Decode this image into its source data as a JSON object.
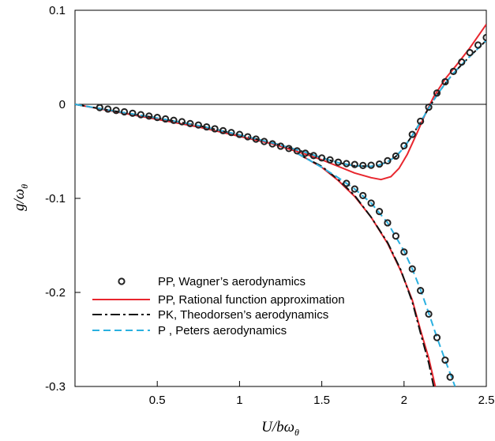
{
  "chart_data": {
    "type": "line",
    "xlabel": {
      "main": "U/bω",
      "sub": "θ"
    },
    "ylabel": {
      "main": "g/ω",
      "sub": "θ"
    },
    "xlim": [
      0,
      2.5
    ],
    "ylim": [
      -0.3,
      0.1
    ],
    "xticks": [
      0.5,
      1,
      1.5,
      2,
      2.5
    ],
    "xtick_labels": [
      "0.5",
      "1",
      "1.5",
      "2",
      "2.5"
    ],
    "yticks": [
      0.1,
      0,
      -0.1,
      -0.2,
      -0.3
    ],
    "ytick_labels": [
      "0.1",
      "0",
      "-0.1",
      "-0.2",
      "-0.3"
    ],
    "zero_line": true,
    "grid": false,
    "legend_position": "bottom-left",
    "series": [
      {
        "name": "PP,  Wagner’s aerodynamics",
        "style": "markers",
        "color": "#222222",
        "branches": [
          [
            [
              0.15,
              -0.0035
            ],
            [
              0.2,
              -0.005
            ],
            [
              0.25,
              -0.0065
            ],
            [
              0.3,
              -0.008
            ],
            [
              0.35,
              -0.0095
            ],
            [
              0.4,
              -0.011
            ],
            [
              0.45,
              -0.0125
            ],
            [
              0.5,
              -0.014
            ],
            [
              0.55,
              -0.0155
            ],
            [
              0.6,
              -0.017
            ],
            [
              0.65,
              -0.0185
            ],
            [
              0.7,
              -0.0205
            ],
            [
              0.75,
              -0.022
            ],
            [
              0.8,
              -0.024
            ],
            [
              0.85,
              -0.026
            ],
            [
              0.9,
              -0.028
            ],
            [
              0.95,
              -0.03
            ],
            [
              1.0,
              -0.032
            ],
            [
              1.05,
              -0.0345
            ],
            [
              1.1,
              -0.037
            ],
            [
              1.15,
              -0.0395
            ],
            [
              1.2,
              -0.042
            ],
            [
              1.25,
              -0.0445
            ],
            [
              1.3,
              -0.047
            ],
            [
              1.35,
              -0.0495
            ],
            [
              1.4,
              -0.052
            ],
            [
              1.45,
              -0.0545
            ],
            [
              1.5,
              -0.057
            ],
            [
              1.55,
              -0.059
            ],
            [
              1.6,
              -0.0615
            ],
            [
              1.65,
              -0.063
            ],
            [
              1.7,
              -0.064
            ],
            [
              1.75,
              -0.065
            ],
            [
              1.8,
              -0.0648
            ],
            [
              1.85,
              -0.0635
            ],
            [
              1.9,
              -0.06
            ],
            [
              1.95,
              -0.055
            ],
            [
              2.0,
              -0.044
            ],
            [
              2.05,
              -0.032
            ],
            [
              2.1,
              -0.018
            ],
            [
              2.15,
              -0.003
            ],
            [
              2.2,
              0.012
            ],
            [
              2.25,
              0.024
            ],
            [
              2.3,
              0.035
            ],
            [
              2.35,
              0.045
            ],
            [
              2.4,
              0.055
            ],
            [
              2.45,
              0.063
            ],
            [
              2.5,
              0.071
            ]
          ],
          [
            [
              1.65,
              -0.084
            ],
            [
              1.7,
              -0.09
            ],
            [
              1.75,
              -0.097
            ],
            [
              1.8,
              -0.105
            ],
            [
              1.85,
              -0.114
            ],
            [
              1.9,
              -0.126
            ],
            [
              1.95,
              -0.14
            ],
            [
              2.0,
              -0.157
            ],
            [
              2.05,
              -0.175
            ],
            [
              2.1,
              -0.198
            ],
            [
              2.15,
              -0.223
            ],
            [
              2.2,
              -0.248
            ],
            [
              2.25,
              -0.272
            ],
            [
              2.28,
              -0.29
            ]
          ]
        ]
      },
      {
        "name": "PP,  Rational function approximation",
        "style": "solid",
        "color": "#e8262e",
        "branches": [
          [
            [
              0,
              0
            ],
            [
              0.25,
              -0.008
            ],
            [
              0.5,
              -0.016
            ],
            [
              0.75,
              -0.024
            ],
            [
              1.0,
              -0.034
            ],
            [
              1.2,
              -0.042
            ],
            [
              1.4,
              -0.053
            ],
            [
              1.5,
              -0.059
            ],
            [
              1.6,
              -0.066
            ],
            [
              1.7,
              -0.073
            ],
            [
              1.8,
              -0.078
            ],
            [
              1.86,
              -0.08
            ],
            [
              1.92,
              -0.077
            ],
            [
              1.97,
              -0.068
            ],
            [
              2.02,
              -0.053
            ],
            [
              2.08,
              -0.03
            ],
            [
              2.13,
              -0.01
            ],
            [
              2.18,
              0.008
            ],
            [
              2.25,
              0.027
            ],
            [
              2.32,
              0.042
            ],
            [
              2.4,
              0.06
            ],
            [
              2.5,
              0.085
            ]
          ],
          [
            [
              1.35,
              -0.052
            ],
            [
              1.4,
              -0.057
            ],
            [
              1.5,
              -0.067
            ],
            [
              1.6,
              -0.081
            ],
            [
              1.7,
              -0.098
            ],
            [
              1.8,
              -0.12
            ],
            [
              1.9,
              -0.148
            ],
            [
              1.98,
              -0.177
            ],
            [
              2.05,
              -0.208
            ],
            [
              2.1,
              -0.24
            ],
            [
              2.15,
              -0.27
            ],
            [
              2.19,
              -0.3
            ]
          ]
        ]
      },
      {
        "name": "PK, Theodorsen’s aerodynamics",
        "style": "dashdot",
        "color": "#111111",
        "branches": [
          [
            [
              0,
              0
            ],
            [
              0.25,
              -0.0075
            ],
            [
              0.5,
              -0.0145
            ],
            [
              0.75,
              -0.0225
            ],
            [
              1.0,
              -0.0325
            ],
            [
              1.2,
              -0.041
            ],
            [
              1.4,
              -0.051
            ],
            [
              1.5,
              -0.057
            ],
            [
              1.6,
              -0.062
            ],
            [
              1.7,
              -0.0655
            ],
            [
              1.8,
              -0.066
            ],
            [
              1.85,
              -0.0645
            ],
            [
              1.9,
              -0.061
            ],
            [
              1.95,
              -0.0555
            ],
            [
              2.0,
              -0.046
            ],
            [
              2.05,
              -0.033
            ],
            [
              2.1,
              -0.019
            ],
            [
              2.15,
              -0.004
            ],
            [
              2.2,
              0.01
            ],
            [
              2.25,
              0.022
            ],
            [
              2.3,
              0.033
            ],
            [
              2.35,
              0.042
            ],
            [
              2.4,
              0.051
            ],
            [
              2.5,
              0.068
            ]
          ],
          [
            [
              1.35,
              -0.052
            ],
            [
              1.4,
              -0.057
            ],
            [
              1.5,
              -0.066
            ],
            [
              1.6,
              -0.08
            ],
            [
              1.7,
              -0.097
            ],
            [
              1.8,
              -0.12
            ],
            [
              1.9,
              -0.147
            ],
            [
              1.98,
              -0.176
            ],
            [
              2.05,
              -0.21
            ],
            [
              2.1,
              -0.243
            ],
            [
              2.15,
              -0.275
            ],
            [
              2.18,
              -0.3
            ]
          ]
        ]
      },
      {
        "name": "P  ,  Peters aerodynamics",
        "style": "dashed",
        "color": "#2ab0e0",
        "branches": [
          [
            [
              0,
              0
            ],
            [
              0.25,
              -0.0075
            ],
            [
              0.5,
              -0.0145
            ],
            [
              0.75,
              -0.0225
            ],
            [
              1.0,
              -0.0325
            ],
            [
              1.2,
              -0.041
            ],
            [
              1.4,
              -0.051
            ],
            [
              1.5,
              -0.057
            ],
            [
              1.6,
              -0.062
            ],
            [
              1.7,
              -0.0655
            ],
            [
              1.8,
              -0.066
            ],
            [
              1.85,
              -0.0645
            ],
            [
              1.9,
              -0.061
            ],
            [
              1.95,
              -0.0555
            ],
            [
              2.0,
              -0.046
            ],
            [
              2.05,
              -0.033
            ],
            [
              2.1,
              -0.019
            ],
            [
              2.15,
              -0.004
            ],
            [
              2.2,
              0.01
            ],
            [
              2.25,
              0.022
            ],
            [
              2.3,
              0.033
            ],
            [
              2.35,
              0.042
            ],
            [
              2.4,
              0.051
            ],
            [
              2.5,
              0.068
            ]
          ],
          [
            [
              1.35,
              -0.052
            ],
            [
              1.4,
              -0.057
            ],
            [
              1.5,
              -0.067
            ],
            [
              1.6,
              -0.078
            ],
            [
              1.7,
              -0.09
            ],
            [
              1.8,
              -0.105
            ],
            [
              1.9,
              -0.126
            ],
            [
              2.0,
              -0.156
            ],
            [
              2.05,
              -0.175
            ],
            [
              2.1,
              -0.197
            ],
            [
              2.15,
              -0.222
            ],
            [
              2.2,
              -0.248
            ],
            [
              2.25,
              -0.272
            ],
            [
              2.31,
              -0.3
            ]
          ]
        ]
      }
    ]
  }
}
